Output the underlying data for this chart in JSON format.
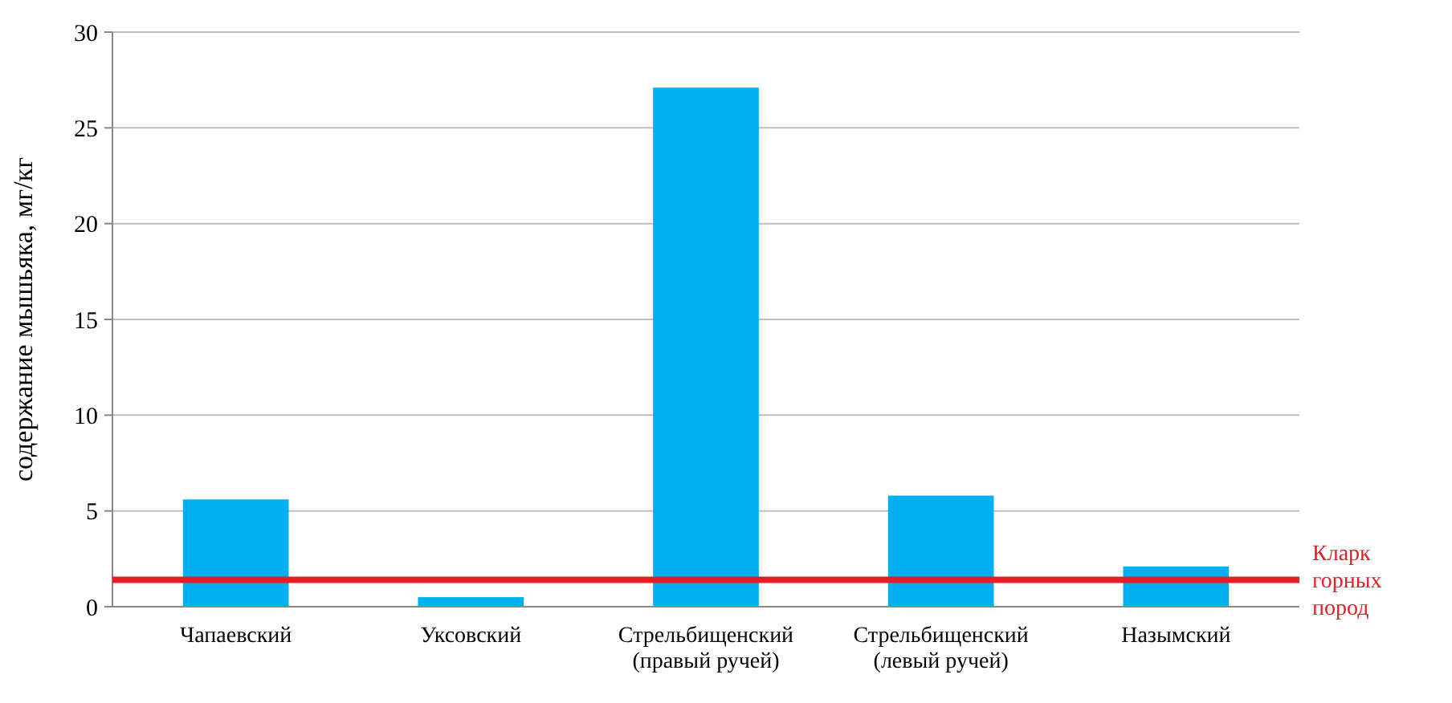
{
  "chart_data": {
    "type": "bar",
    "ylabel": "содержание мышьяка, мг/кг",
    "categories": [
      "Чапаевский",
      "Уксовский",
      "Стрельбищенский\n(правый ручей)",
      "Стрельбищенский\n(левый ручей)",
      "Назымский"
    ],
    "values": [
      5.6,
      0.5,
      27.1,
      5.8,
      2.1
    ],
    "color": "#00b0f0",
    "ylim": [
      0,
      30
    ],
    "yticks": [
      0,
      5,
      10,
      15,
      20,
      25,
      30
    ],
    "grid": "y",
    "ref_lines": [
      {
        "axis": "y",
        "value": 1.4,
        "label": "Кларк\nгорных\nпород",
        "color": "#e31e24"
      }
    ]
  }
}
